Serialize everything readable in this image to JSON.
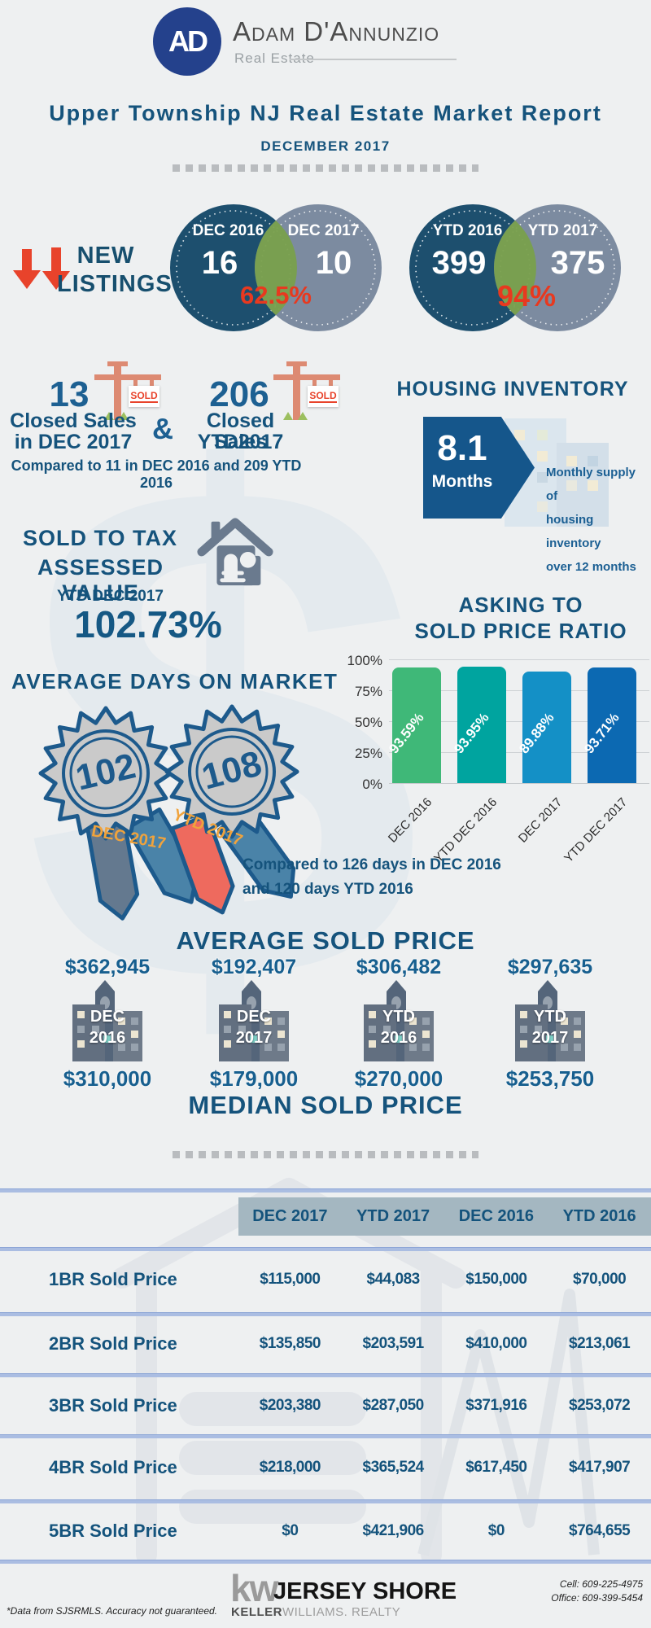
{
  "brand": {
    "logo_monogram": "AD",
    "name": "Adam D'Annunzio",
    "subtitle": "Real Estate"
  },
  "title": "Upper Township NJ Real Estate Market Report",
  "report_period": "DECEMBER 2017",
  "watermark": {
    "dollar": "$"
  },
  "new_listings": {
    "label_line1": "NEW",
    "label_line2": "LISTINGS",
    "monthly": {
      "left_label": "DEC 2016",
      "left_value": "16",
      "right_label": "DEC 2017",
      "right_value": "10",
      "pct": "62.5%"
    },
    "ytd": {
      "left_label": "YTD 2016",
      "left_value": "399",
      "right_label": "YTD 2017",
      "right_value": "375",
      "pct": "94%"
    }
  },
  "closed_sales": {
    "sold_sign": "SOLD",
    "dec": {
      "value": "13",
      "line1": "Closed Sales",
      "line2": "in DEC 2017"
    },
    "amp": "&",
    "ytd": {
      "value": "206",
      "line1": "Closed Sales",
      "line2": "YTD2017"
    },
    "comparison": "Compared to 11 in DEC 2016 and 209 YTD 2016"
  },
  "housing_inventory": {
    "title": "HOUSING INVENTORY",
    "value": "8.1",
    "unit": "Months",
    "description_lines": [
      "Monthly supply of",
      "housing inventory",
      "over 12 months"
    ]
  },
  "sold_to_tax": {
    "line1": "SOLD TO TAX",
    "line2": "ASSESSED VALUE",
    "period": "YTD DEC 2017",
    "value": "102.73%"
  },
  "asking_to_sold": {
    "title_line1": "ASKING TO",
    "title_line2": "SOLD PRICE RATIO"
  },
  "chart_data": {
    "type": "bar",
    "title": "Asking to Sold Price Ratio",
    "categories": [
      "DEC 2016",
      "YTD DEC 2016",
      "DEC 2017",
      "YTD DEC 2017"
    ],
    "values": [
      93.59,
      93.95,
      89.88,
      93.71
    ],
    "labels": [
      "93.59%",
      "93.95%",
      "89.88%",
      "93.71%"
    ],
    "bar_colors": [
      "#3fb878",
      "#00a49f",
      "#1490c6",
      "#0c69b2"
    ],
    "ylabel_ticks": [
      "100%",
      "75%",
      "50%",
      "25%",
      "0%"
    ],
    "ylim": [
      0,
      100
    ],
    "grid": true,
    "legend": "none"
  },
  "days_on_market": {
    "title": "AVERAGE DAYS ON MARKET",
    "badges": [
      {
        "value": "102",
        "ribbon": "DEC 2017"
      },
      {
        "value": "108",
        "ribbon": "YTD 2017"
      }
    ],
    "comparison_line1": "Compared to 126 days in DEC 2016",
    "comparison_line2": "and 120 days YTD 2016"
  },
  "sold_price": {
    "average_title": "AVERAGE SOLD PRICE",
    "median_title": "MEDIAN SOLD PRICE",
    "columns": [
      {
        "average": "$362,945",
        "label_line1": "DEC",
        "label_line2": "2016",
        "median": "$310,000"
      },
      {
        "average": "$192,407",
        "label_line1": "DEC",
        "label_line2": "2017",
        "median": "$179,000"
      },
      {
        "average": "$306,482",
        "label_line1": "YTD",
        "label_line2": "2016",
        "median": "$270,000"
      },
      {
        "average": "$297,635",
        "label_line1": "YTD",
        "label_line2": "2017",
        "median": "$253,750"
      }
    ]
  },
  "table": {
    "headers": [
      "DEC 2017",
      "YTD 2017",
      "DEC 2016",
      "YTD 2016"
    ],
    "rows": [
      {
        "label": "1BR Sold Price",
        "values": [
          "$115,000",
          "$44,083",
          "$150,000",
          "$70,000"
        ]
      },
      {
        "label": "2BR Sold Price",
        "values": [
          "$135,850",
          "$203,591",
          "$410,000",
          "$213,061"
        ]
      },
      {
        "label": "3BR Sold Price",
        "values": [
          "$203,380",
          "$287,050",
          "$371,916",
          "$253,072"
        ]
      },
      {
        "label": "4BR Sold Price",
        "values": [
          "$218,000",
          "$365,524",
          "$617,450",
          "$417,907"
        ]
      },
      {
        "label": "5BR Sold Price",
        "values": [
          "$0",
          "$421,906",
          "$0",
          "$764,655"
        ]
      }
    ]
  },
  "footer": {
    "disclaimer": "*Data from SJSRMLS.  Accuracy not guaranteed.",
    "kw_mark": "kw",
    "kw_title": "JERSEY SHORE",
    "kw_sub_bold": "KELLER",
    "kw_sub_light": "WILLIAMS. REALTY",
    "cell": "Cell: 609-225-4975",
    "office": "Office: 609-399-5454"
  },
  "colors": {
    "background": "#eef0f1",
    "heading_blue": "#15537c",
    "number_blue": "#1d6092",
    "accent_red": "#e8432b",
    "salmon": "#dd8a72",
    "venn_dark": "#1d4f6e",
    "venn_gray": "#7c8ba0",
    "venn_overlap_green": "#79a04c",
    "table_band": "#a4b7c1",
    "table_line": "#aabde2",
    "ribbon_orange_text": "#f0a33c"
  }
}
